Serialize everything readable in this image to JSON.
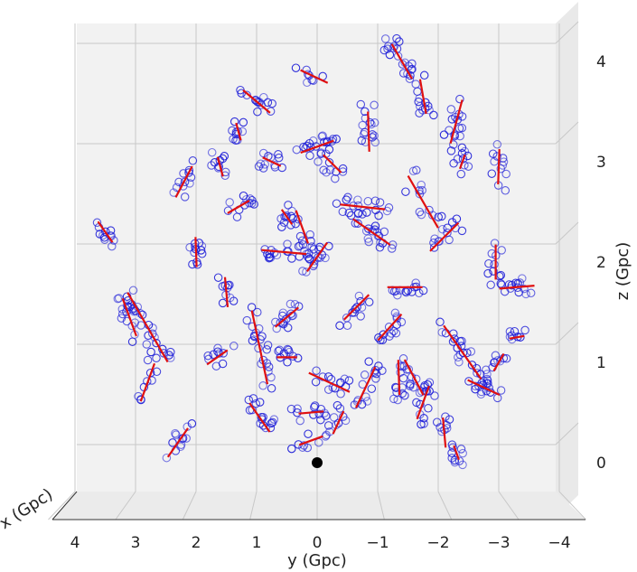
{
  "chart_data": {
    "type": "scatter",
    "projection": "3d",
    "xlabel": "y (Gpc)",
    "ylabel": "z (Gpc)",
    "zlabel": "x (Gpc)",
    "x_ticks": [
      "4",
      "3",
      "2",
      "1",
      "0",
      "−1",
      "−2",
      "−3",
      "−4"
    ],
    "y_ticks": [
      "0",
      "1",
      "2",
      "3",
      "4"
    ],
    "xlim": [
      4.1,
      -4.1
    ],
    "ylim": [
      -0.55,
      4.4
    ],
    "grid": true,
    "colors": {
      "points": "#1f1fd8",
      "segments": "#e01010",
      "origin": "#000000",
      "pane": "#f2f2f2",
      "grid": "#c8c8c8"
    },
    "origin_marker": {
      "x": 0,
      "y": 0
    },
    "clusters": [
      {
        "cx": 3.5,
        "cy": 2.3,
        "len": 0.25,
        "angle": -55,
        "n": 12
      },
      {
        "cx": 2.2,
        "cy": 2.8,
        "len": 0.35,
        "angle": 62,
        "n": 12
      },
      {
        "cx": 2.0,
        "cy": 2.1,
        "len": 0.3,
        "angle": 92,
        "n": 12
      },
      {
        "cx": 1.6,
        "cy": 2.95,
        "len": 0.2,
        "angle": -75,
        "n": 10
      },
      {
        "cx": 1.3,
        "cy": 3.3,
        "len": 0.18,
        "angle": -75,
        "n": 10
      },
      {
        "cx": 1.0,
        "cy": 3.6,
        "len": 0.35,
        "angle": -40,
        "n": 14
      },
      {
        "cx": 1.3,
        "cy": 2.55,
        "len": 0.25,
        "angle": 30,
        "n": 12
      },
      {
        "cx": 0.75,
        "cy": 3.0,
        "len": 0.2,
        "angle": -25,
        "n": 12
      },
      {
        "cx": 0.0,
        "cy": 3.15,
        "len": 0.35,
        "angle": 20,
        "n": 18
      },
      {
        "cx": -0.25,
        "cy": 2.98,
        "len": 0.25,
        "angle": -45,
        "n": 12
      },
      {
        "cx": 0.05,
        "cy": 3.85,
        "len": 0.3,
        "angle": -25,
        "n": 8
      },
      {
        "cx": 0.5,
        "cy": 2.45,
        "len": 0.18,
        "angle": -55,
        "n": 10
      },
      {
        "cx": 0.55,
        "cy": 2.1,
        "len": 0.45,
        "angle": -5,
        "n": 20
      },
      {
        "cx": 0.25,
        "cy": 2.35,
        "len": 0.35,
        "angle": -70,
        "n": 10
      },
      {
        "cx": 0.0,
        "cy": 2.05,
        "len": 0.35,
        "angle": 55,
        "n": 14
      },
      {
        "cx": -0.85,
        "cy": 3.3,
        "len": 0.4,
        "angle": -88,
        "n": 16
      },
      {
        "cx": -1.4,
        "cy": 4.0,
        "len": 0.4,
        "angle": -60,
        "n": 22
      },
      {
        "cx": -1.75,
        "cy": 3.65,
        "len": 0.35,
        "angle": -80,
        "n": 12
      },
      {
        "cx": -2.3,
        "cy": 3.4,
        "len": 0.45,
        "angle": 75,
        "n": 16
      },
      {
        "cx": -2.4,
        "cy": 3.0,
        "len": 0.15,
        "angle": 70,
        "n": 10
      },
      {
        "cx": -3.0,
        "cy": 2.95,
        "len": 0.35,
        "angle": -92,
        "n": 12
      },
      {
        "cx": -0.75,
        "cy": 2.55,
        "len": 0.45,
        "angle": -6,
        "n": 18
      },
      {
        "cx": -0.9,
        "cy": 2.3,
        "len": 0.45,
        "angle": -35,
        "n": 20
      },
      {
        "cx": -1.75,
        "cy": 2.6,
        "len": 0.6,
        "angle": -60,
        "n": 14
      },
      {
        "cx": -2.1,
        "cy": 2.25,
        "len": 0.4,
        "angle": 45,
        "n": 12
      },
      {
        "cx": -1.45,
        "cy": 1.75,
        "len": 0.35,
        "angle": 0,
        "n": 14
      },
      {
        "cx": -2.95,
        "cy": 2.0,
        "len": 0.35,
        "angle": -90,
        "n": 12
      },
      {
        "cx": -3.3,
        "cy": 1.75,
        "len": 0.35,
        "angle": 5,
        "n": 14
      },
      {
        "cx": 3.1,
        "cy": 1.45,
        "len": 0.4,
        "angle": -70,
        "n": 18
      },
      {
        "cx": 2.8,
        "cy": 1.35,
        "len": 0.8,
        "angle": -60,
        "n": 22
      },
      {
        "cx": 2.8,
        "cy": 0.8,
        "len": 0.4,
        "angle": 70,
        "n": 10
      },
      {
        "cx": 2.3,
        "cy": 0.2,
        "len": 0.35,
        "angle": 55,
        "n": 12
      },
      {
        "cx": 1.65,
        "cy": 1.05,
        "len": 0.25,
        "angle": 35,
        "n": 10
      },
      {
        "cx": 1.5,
        "cy": 1.7,
        "len": 0.3,
        "angle": -85,
        "n": 10
      },
      {
        "cx": 0.95,
        "cy": 1.15,
        "len": 0.75,
        "angle": -78,
        "n": 22
      },
      {
        "cx": 0.95,
        "cy": 0.45,
        "len": 0.35,
        "angle": -55,
        "n": 16
      },
      {
        "cx": 0.5,
        "cy": 1.45,
        "len": 0.3,
        "angle": 40,
        "n": 16
      },
      {
        "cx": 0.5,
        "cy": 1.05,
        "len": 0.2,
        "angle": 0,
        "n": 10
      },
      {
        "cx": 0.1,
        "cy": 0.5,
        "len": 0.25,
        "angle": 5,
        "n": 12
      },
      {
        "cx": 0.1,
        "cy": 0.22,
        "len": 0.25,
        "angle": 20,
        "n": 8
      },
      {
        "cx": -0.2,
        "cy": 0.8,
        "len": 0.45,
        "angle": -25,
        "n": 14
      },
      {
        "cx": -0.35,
        "cy": 0.4,
        "len": 0.25,
        "angle": 65,
        "n": 10
      },
      {
        "cx": -0.8,
        "cy": 0.75,
        "len": 0.45,
        "angle": 65,
        "n": 16
      },
      {
        "cx": -0.65,
        "cy": 1.55,
        "len": 0.35,
        "angle": 45,
        "n": 12
      },
      {
        "cx": -1.2,
        "cy": 1.35,
        "len": 0.35,
        "angle": 48,
        "n": 14
      },
      {
        "cx": -1.35,
        "cy": 0.85,
        "len": 0.35,
        "angle": -88,
        "n": 12
      },
      {
        "cx": -1.6,
        "cy": 0.85,
        "len": 0.4,
        "angle": -62,
        "n": 14
      },
      {
        "cx": -1.75,
        "cy": 0.6,
        "len": 0.35,
        "angle": 70,
        "n": 12
      },
      {
        "cx": -2.1,
        "cy": 0.3,
        "len": 0.3,
        "angle": -85,
        "n": 10
      },
      {
        "cx": -2.3,
        "cy": 0.1,
        "len": 0.15,
        "angle": -70,
        "n": 8
      },
      {
        "cx": -2.4,
        "cy": 1.1,
        "len": 0.65,
        "angle": -55,
        "n": 24
      },
      {
        "cx": -2.75,
        "cy": 0.75,
        "len": 0.35,
        "angle": -25,
        "n": 14
      },
      {
        "cx": -3.0,
        "cy": 1.0,
        "len": 0.2,
        "angle": 60,
        "n": 10
      },
      {
        "cx": -3.3,
        "cy": 1.25,
        "len": 0.15,
        "angle": 10,
        "n": 8
      }
    ]
  }
}
